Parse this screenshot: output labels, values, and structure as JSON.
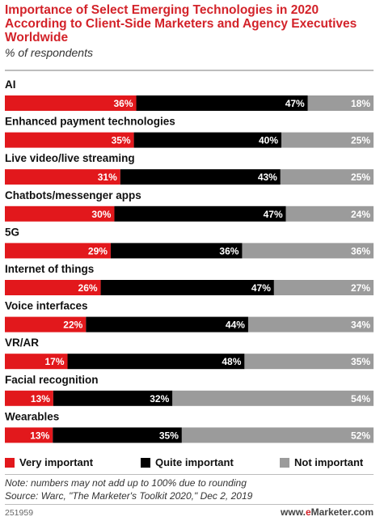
{
  "header": {
    "title": "Importance of Select Emerging Technologies in 2020 According to Client-Side Marketers and Agency Executives Worldwide",
    "subtitle": "% of respondents"
  },
  "chart_data": {
    "type": "bar",
    "orientation": "horizontal",
    "stacked": true,
    "categories": [
      "AI",
      "Enhanced payment technologies",
      "Live video/live streaming",
      "Chatbots/messenger apps",
      "5G",
      "Internet of things",
      "Voice interfaces",
      "VR/AR",
      "Facial recognition",
      "Wearables"
    ],
    "series": [
      {
        "name": "Very important",
        "color": "#e2181c",
        "values": [
          36,
          35,
          31,
          30,
          29,
          26,
          22,
          17,
          13,
          13
        ]
      },
      {
        "name": "Quite important",
        "color": "#000000",
        "values": [
          47,
          40,
          43,
          47,
          36,
          47,
          44,
          48,
          32,
          35
        ]
      },
      {
        "name": "Not important",
        "color": "#9b9b9b",
        "values": [
          18,
          25,
          25,
          24,
          36,
          27,
          34,
          35,
          54,
          52
        ]
      }
    ],
    "value_suffix": "%",
    "legend_position": "bottom"
  },
  "footer": {
    "note": "Note: numbers may not add up to 100% due to rounding",
    "source": "Source: Warc, \"The Marketer's Toolkit 2020,\" Dec 2, 2019",
    "chart_id": "251959",
    "brand_prefix": "www.",
    "brand_e": "e",
    "brand_rest": "Marketer.com"
  }
}
